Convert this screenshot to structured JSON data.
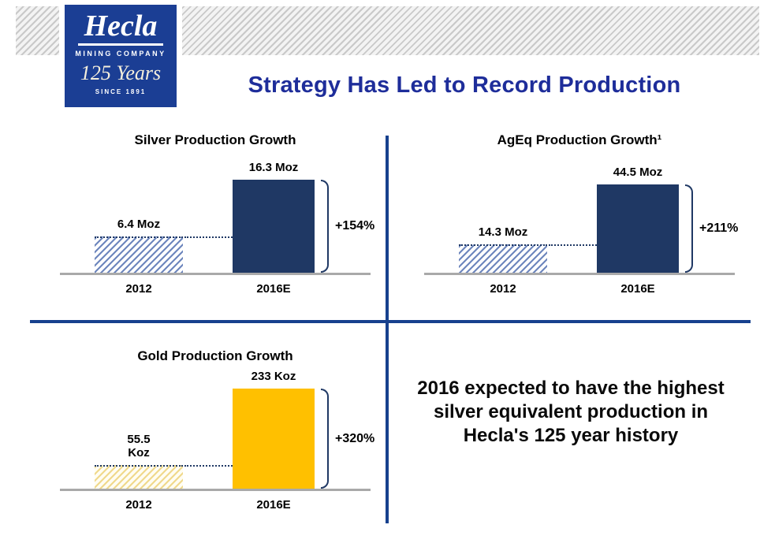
{
  "slide": {
    "title": "Strategy Has Led to Record Production",
    "callout": "2016 expected to have the highest silver equivalent production in Hecla's 125 year history"
  },
  "logo": {
    "wordmark": "Hecla",
    "subtitle": "MINING COMPANY",
    "anniversary": "125 Years",
    "since": "SINCE 1891"
  },
  "colors": {
    "brand_blue": "#1b3e94",
    "title_blue": "#1e2d9a",
    "bar_navy": "#1f3864",
    "bar_gold": "#ffc000",
    "divider_blue": "#17418e",
    "axis_gray": "#a9a9a9"
  },
  "chart_data": [
    {
      "type": "bar",
      "title": "Silver Production Growth",
      "categories": [
        "2012",
        "2016E"
      ],
      "values": [
        6.4,
        16.3
      ],
      "value_labels": [
        "6.4 Moz",
        "16.3 Moz"
      ],
      "growth_label": "+154%",
      "unit": "Moz",
      "ylim": [
        0,
        18
      ],
      "bar_styles": [
        "hatched-blue",
        "solid-navy"
      ],
      "legend": "off",
      "grid": "off"
    },
    {
      "type": "bar",
      "title": "AgEq Production Growth¹",
      "categories": [
        "2012",
        "2016E"
      ],
      "values": [
        14.3,
        44.5
      ],
      "value_labels": [
        "14.3 Moz",
        "44.5 Moz"
      ],
      "growth_label": "+211%",
      "unit": "Moz",
      "ylim": [
        0,
        48
      ],
      "bar_styles": [
        "hatched-blue",
        "solid-navy"
      ],
      "legend": "off",
      "grid": "off"
    },
    {
      "type": "bar",
      "title": "Gold Production Growth",
      "categories": [
        "2012",
        "2016E"
      ],
      "values": [
        55.5,
        233
      ],
      "value_labels": [
        "55.5\nKoz",
        "233 Koz"
      ],
      "growth_label": "+320%",
      "unit": "Koz",
      "ylim": [
        0,
        250
      ],
      "bar_styles": [
        "hatched-gold",
        "solid-gold"
      ],
      "legend": "off",
      "grid": "off"
    }
  ]
}
